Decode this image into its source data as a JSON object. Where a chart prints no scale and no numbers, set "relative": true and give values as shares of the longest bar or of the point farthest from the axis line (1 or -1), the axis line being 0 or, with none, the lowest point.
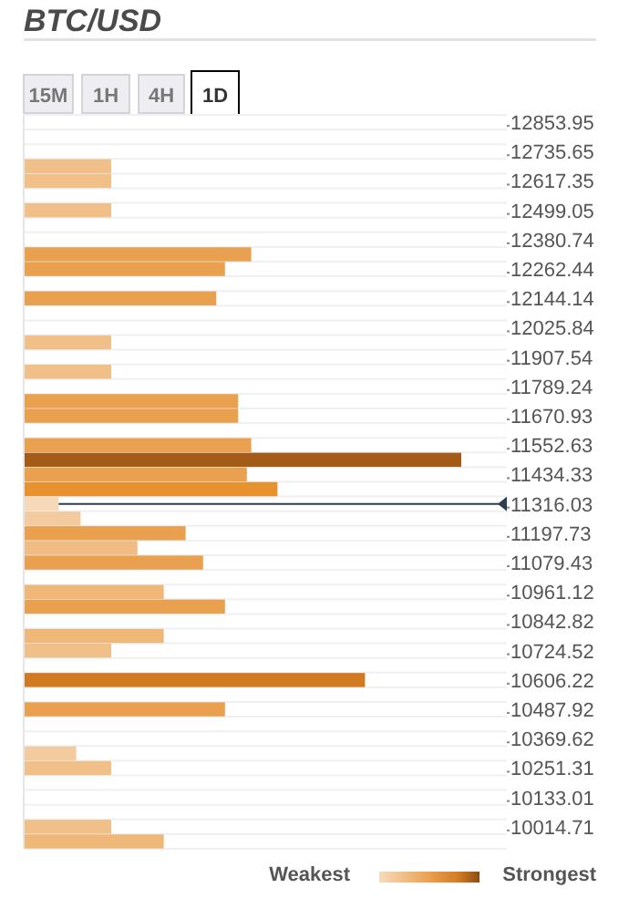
{
  "chart_data": {
    "type": "bar",
    "orientation": "horizontal",
    "relative": true,
    "title": "BTC/USD",
    "annotations": [
      "15M",
      "1H",
      "4H",
      "1D",
      "Weakest",
      "Strongest"
    ],
    "categories": [
      "12853.95",
      null,
      "12735.65",
      null,
      "12617.35",
      null,
      "12499.05",
      null,
      "12380.74",
      null,
      "12262.44",
      null,
      "12144.14",
      null,
      "12025.84",
      null,
      "11907.54",
      null,
      "11789.24",
      null,
      "11670.93",
      null,
      "11552.63",
      null,
      "11434.33",
      null,
      "11316.03",
      null,
      "11197.73",
      null,
      "11079.43",
      null,
      "10961.12",
      null,
      "10842.82",
      null,
      "10724.52",
      null,
      "10606.22",
      null,
      "10487.92",
      null,
      "10369.62",
      null,
      "10251.31",
      null,
      "10133.01",
      null,
      "10014.71",
      null
    ],
    "values": [
      null,
      null,
      null,
      0.2,
      0.2,
      null,
      0.2,
      null,
      null,
      0.52,
      0.46,
      null,
      0.44,
      null,
      null,
      0.2,
      null,
      0.2,
      null,
      0.49,
      0.49,
      null,
      0.52,
      1,
      0.51,
      0.58,
      0.08,
      0.13,
      0.37,
      0.26,
      0.41,
      null,
      0.32,
      0.46,
      null,
      0.32,
      0.2,
      null,
      0.78,
      null,
      0.46,
      null,
      null,
      0.12,
      0.2,
      null,
      null,
      null,
      0.2,
      0.32
    ],
    "colors": [
      null,
      null,
      null,
      "#f0c088",
      "#f0c088",
      null,
      "#f0c088",
      null,
      null,
      "#e9a04f",
      "#e9a04f",
      null,
      "#e9a04f",
      null,
      null,
      "#f0c088",
      null,
      "#f0c088",
      null,
      "#e9a04f",
      "#e9a04f",
      null,
      "#e9a04f",
      "#a35b17",
      "#e9a04f",
      "#e8912f",
      "#f6d9b8",
      "#f3cb9e",
      "#e9a04f",
      "#efbd83",
      "#e9a04f",
      null,
      "#efb878",
      "#e9a04f",
      null,
      "#efb878",
      "#f0c088",
      null,
      "#d27a22",
      null,
      "#e9a04f",
      null,
      null,
      "#f3cb9e",
      "#f0c088",
      null,
      null,
      null,
      "#f0c088",
      "#efb878"
    ],
    "tick_labels": "y",
    "grid": "y",
    "ref_lines": [
      {
        "axis": "y",
        "value": "11316.03",
        "color": "#2c3e50"
      }
    ]
  }
}
